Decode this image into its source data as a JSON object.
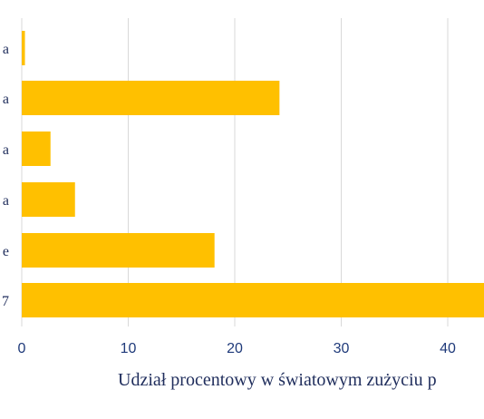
{
  "chart_data": {
    "type": "bar",
    "orientation": "horizontal",
    "category_labels_visible": [
      "a",
      "a",
      "a",
      "a",
      "e",
      "7"
    ],
    "values": [
      0.3,
      24.2,
      2.7,
      5.0,
      18.1,
      43.5
    ],
    "xlim": [
      0,
      43.5
    ],
    "x_ticks": [
      "0",
      "10",
      "20",
      "30",
      "40"
    ],
    "xlabel": "Udział procentowy w światowym zużyciu p",
    "grid": true,
    "bar_color": "#ffc000",
    "grid_color": "#d9d9d9",
    "tick_color": "#1f3a7a",
    "text_color": "#1f2d5c"
  }
}
